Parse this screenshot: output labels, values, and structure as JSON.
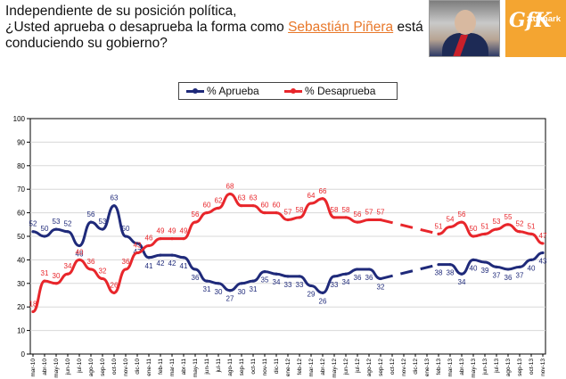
{
  "title": {
    "line1": "Independiente de su posición política,",
    "line2": "¿Usted aprueba o desaprueba la forma como ",
    "highlight": "Sebastián Piñera",
    "line3": " está conduciendo su gobierno?"
  },
  "logo": {
    "brand": "GfK",
    "sub": "Adimark",
    "color": "#f4a531"
  },
  "chart_data": {
    "type": "line",
    "ylim": [
      0,
      100
    ],
    "yticks": [
      0,
      10,
      20,
      30,
      40,
      50,
      60,
      70,
      80,
      90,
      100
    ],
    "categories": [
      "mar-10",
      "abr-10",
      "may-10",
      "jun-10",
      "jul-10",
      "ago-10",
      "sep-10",
      "oct-10",
      "nov-10",
      "dic-10",
      "ene-11",
      "feb-11",
      "mar-11",
      "abr-11",
      "may-11",
      "jun-11",
      "jul-11",
      "ago-11",
      "sep-11",
      "oct-11",
      "nov-11",
      "dic-11",
      "ene-12",
      "feb-12",
      "mar-12",
      "abr-12",
      "may-12",
      "jun-12",
      "jul-12",
      "ago-12",
      "sep-12",
      "oct-12",
      "nov-12",
      "dic-12",
      "ene-13",
      "feb-13",
      "mar-13",
      "abr-13",
      "may-13",
      "jun-13",
      "jul-13",
      "ago-13",
      "sep-13",
      "oct-13",
      "nov-13"
    ],
    "series": [
      {
        "name": "% Aprueba",
        "color": "#1f2a7a",
        "values": [
          52,
          50,
          53,
          52,
          46,
          56,
          53,
          63,
          50,
          47,
          41,
          42,
          42,
          41,
          36,
          31,
          30,
          27,
          30,
          31,
          35,
          34,
          33,
          33,
          29,
          26,
          33,
          34,
          36,
          36,
          32,
          null,
          null,
          null,
          null,
          38,
          38,
          34,
          40,
          39,
          37,
          36,
          37,
          40,
          43
        ],
        "labels": [
          "52",
          "50",
          "53",
          "52",
          "46",
          "56",
          "53",
          "63",
          "50",
          "47",
          "41",
          "42",
          "42",
          "41",
          "36",
          "31",
          "30",
          "27",
          "30",
          "31",
          "35",
          "34",
          "33",
          "33",
          "29",
          "26",
          "33",
          "34",
          "36",
          "36",
          "32",
          "",
          "",
          "",
          "",
          "38",
          "38",
          "34",
          "40",
          "39",
          "37",
          "36",
          "37",
          "40",
          "43"
        ]
      },
      {
        "name": "% Desaprueba",
        "color": "#e8262b",
        "values": [
          18,
          31,
          30,
          34,
          40,
          36,
          32,
          26,
          36,
          43,
          46,
          49,
          49,
          49,
          56,
          60,
          62,
          68,
          63,
          63,
          60,
          60,
          57,
          58,
          64,
          66,
          58,
          58,
          56,
          57,
          57,
          null,
          null,
          null,
          null,
          51,
          54,
          56,
          50,
          51,
          53,
          55,
          52,
          51,
          47
        ],
        "labels": [
          "18",
          "31",
          "30",
          "34",
          "40",
          "36",
          "32",
          "26",
          "36",
          "43",
          "46",
          "49",
          "49",
          "49",
          "56",
          "60",
          "62",
          "68",
          "63",
          "63",
          "60",
          "60",
          "57",
          "58",
          "64",
          "66",
          "58",
          "58",
          "56",
          "57",
          "57",
          "",
          "",
          "",
          "",
          "51",
          "54",
          "56",
          "50",
          "51",
          "53",
          "55",
          "52",
          "51",
          "47"
        ]
      }
    ],
    "gap_note": "dashed segment between oct-12 and feb-13 (no surveys)"
  }
}
